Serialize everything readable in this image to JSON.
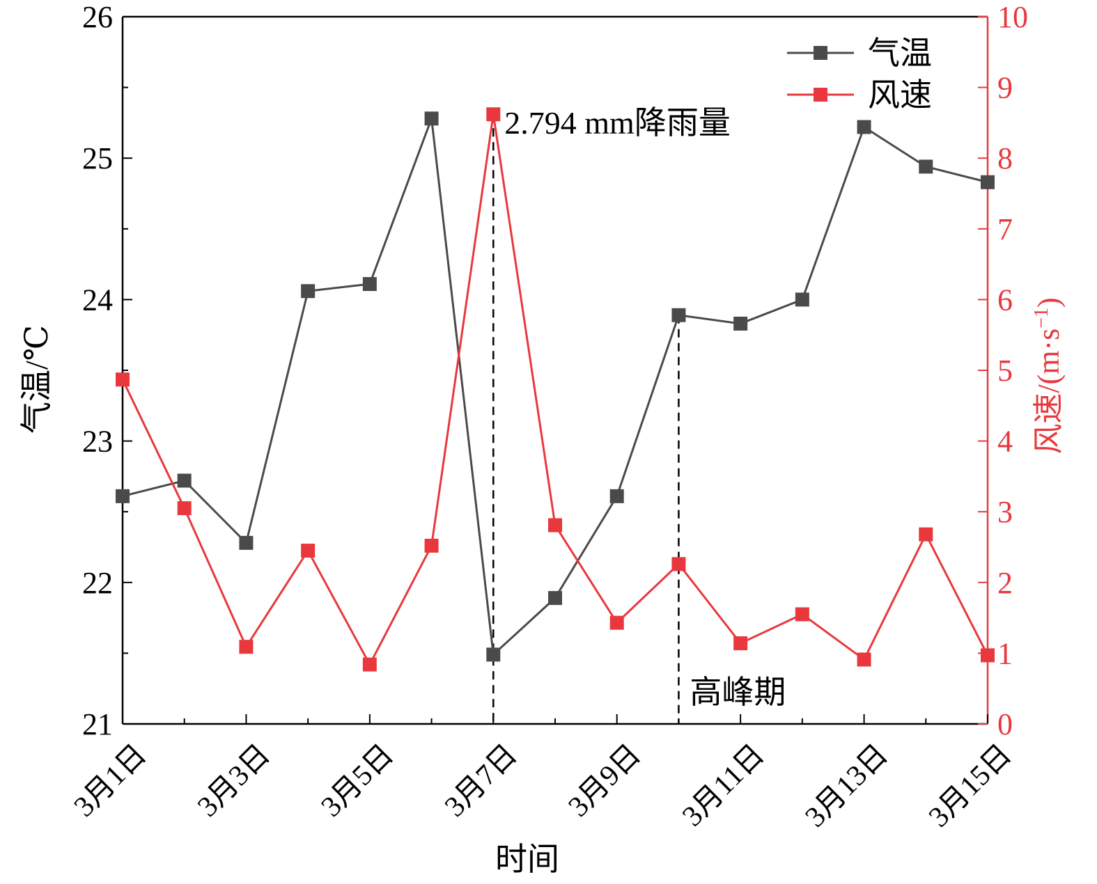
{
  "chart_data": {
    "type": "line",
    "xlabel": "时间",
    "x_tick_labels": [
      "3月1日",
      "3月3日",
      "3月5日",
      "3月7日",
      "3月9日",
      "3月11日",
      "3月13日",
      "3月15日"
    ],
    "x": [
      1,
      2,
      3,
      4,
      5,
      6,
      7,
      8,
      9,
      10,
      11,
      12,
      13,
      14,
      15
    ],
    "xlim": [
      1,
      15
    ],
    "y_left": {
      "label": "气温/℃",
      "lim": [
        21,
        26
      ],
      "ticks": [
        "21",
        "22",
        "23",
        "24",
        "25",
        "26"
      ]
    },
    "y_right": {
      "label": "风速/(m·s",
      "label_sup": "−1",
      "label_close": ")",
      "lim": [
        0,
        10
      ],
      "ticks": [
        "0",
        "1",
        "2",
        "3",
        "4",
        "5",
        "6",
        "7",
        "8",
        "9",
        "10"
      ],
      "color": "#e8383d"
    },
    "series": [
      {
        "name": "气温",
        "axis": "left",
        "color": "#4a4a4a",
        "values": [
          22.61,
          22.72,
          22.28,
          24.06,
          24.11,
          25.28,
          21.49,
          21.89,
          22.61,
          23.89,
          23.83,
          24.0,
          25.22,
          24.94,
          24.83
        ]
      },
      {
        "name": "风速",
        "axis": "right",
        "color": "#e8383d",
        "values": [
          4.87,
          3.05,
          1.09,
          2.45,
          0.84,
          2.52,
          8.62,
          2.81,
          1.43,
          2.26,
          1.14,
          1.55,
          0.91,
          2.68,
          0.97
        ]
      }
    ],
    "annotations": [
      {
        "text": "2.794 mm降雨量",
        "x": 7
      },
      {
        "text": "高峰期",
        "x": 10
      }
    ],
    "legend_position": "top-right",
    "grid": false
  }
}
